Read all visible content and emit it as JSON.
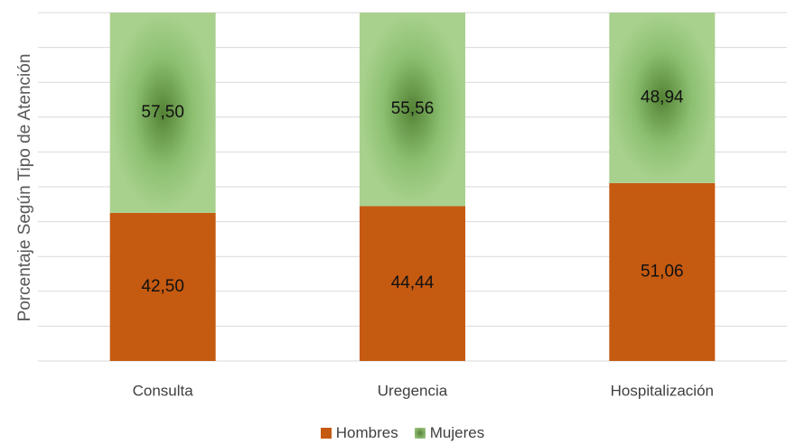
{
  "chart_data": {
    "type": "bar",
    "stacked": true,
    "ylabel": "Porcentaje Según Tipo de Atención",
    "categories": [
      "Consulta",
      "Uregencia",
      "Hospitalización"
    ],
    "series": [
      {
        "name": "Hombres",
        "values": [
          42.5,
          44.44,
          51.06
        ],
        "labels": [
          "42,50",
          "44,44",
          "51,06"
        ],
        "color": "#c55a11"
      },
      {
        "name": "Mujeres",
        "values": [
          57.5,
          55.56,
          48.94
        ],
        "labels": [
          "57,50",
          "55,56",
          "48,94"
        ],
        "color": "#a9d18e",
        "glow": "#548235"
      }
    ],
    "ylim": [
      0,
      100
    ],
    "grid": true,
    "legend_position": "bottom"
  }
}
